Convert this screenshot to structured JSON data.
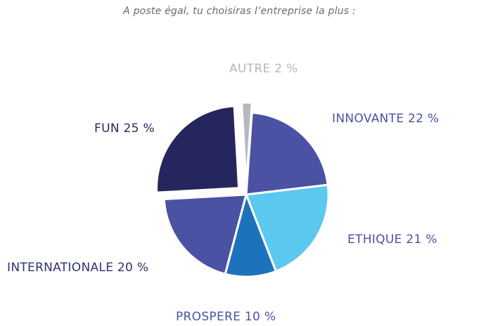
{
  "chart_data": {
    "type": "pie",
    "title": "A poste égal, tu choisiras l’entreprise la plus :",
    "slices": [
      {
        "label": "INNOVANTE",
        "value": 22,
        "text": "INNOVANTE 22 %",
        "color": "#4b52a3",
        "labelColor": "#4b52a3"
      },
      {
        "label": "ETHIQUE",
        "value": 21,
        "text": "ETHIQUE 21 %",
        "color": "#5bc8ef",
        "labelColor": "#4b52a3"
      },
      {
        "label": "PROSPERE",
        "value": 10,
        "text": "PROSPERE 10 %",
        "color": "#1d73bb",
        "labelColor": "#4b52a3"
      },
      {
        "label": "INTERNATIONALE",
        "value": 20,
        "text": "INTERNATIONALE 20 %",
        "color": "#4b52a3",
        "labelColor": "#2e3270"
      },
      {
        "label": "FUN",
        "value": 25,
        "text": "FUN 25 %",
        "color": "#26265e",
        "labelColor": "#2a2a5c",
        "exploded": true
      },
      {
        "label": "AUTRE",
        "value": 2,
        "text": "AUTRE 2 %",
        "color": "#b5b8bd",
        "labelColor": "#b8b8bc",
        "exploded": true
      }
    ]
  }
}
